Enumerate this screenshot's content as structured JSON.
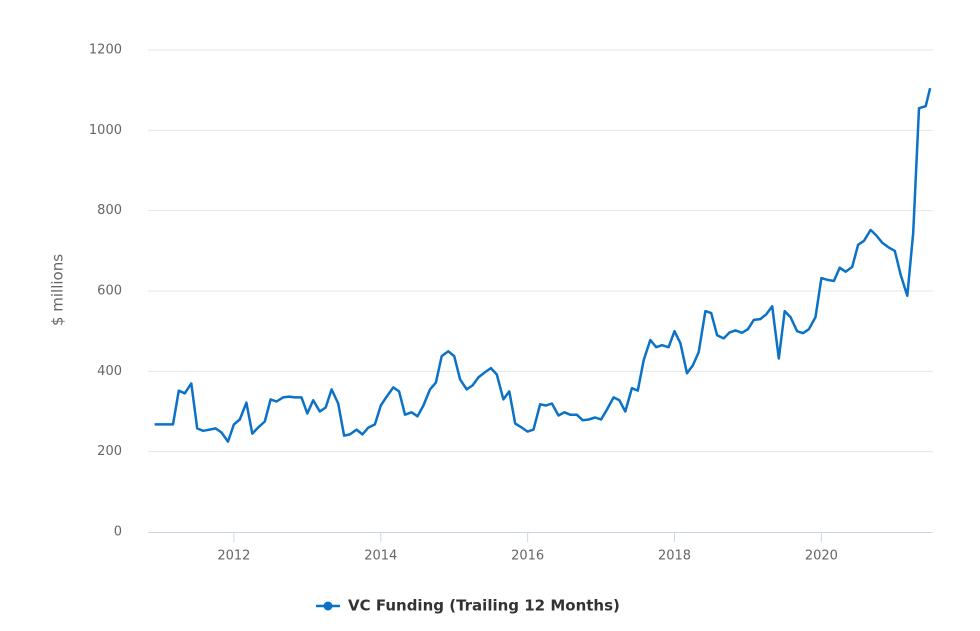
{
  "chart_data": {
    "type": "line",
    "y_label": "$ millions",
    "x": [
      2010.92,
      2011.0,
      2011.08,
      2011.17,
      2011.25,
      2011.33,
      2011.42,
      2011.5,
      2011.58,
      2011.67,
      2011.75,
      2011.83,
      2011.92,
      2012.0,
      2012.08,
      2012.17,
      2012.25,
      2012.33,
      2012.42,
      2012.5,
      2012.58,
      2012.67,
      2012.75,
      2012.83,
      2012.92,
      2013.0,
      2013.08,
      2013.17,
      2013.25,
      2013.33,
      2013.42,
      2013.5,
      2013.58,
      2013.67,
      2013.75,
      2013.83,
      2013.92,
      2014.0,
      2014.08,
      2014.17,
      2014.25,
      2014.33,
      2014.42,
      2014.5,
      2014.58,
      2014.67,
      2014.75,
      2014.83,
      2014.92,
      2015.0,
      2015.08,
      2015.17,
      2015.25,
      2015.33,
      2015.42,
      2015.5,
      2015.58,
      2015.67,
      2015.75,
      2015.83,
      2015.92,
      2016.0,
      2016.08,
      2016.17,
      2016.25,
      2016.33,
      2016.42,
      2016.5,
      2016.58,
      2016.67,
      2016.75,
      2016.83,
      2016.92,
      2017.0,
      2017.08,
      2017.17,
      2017.25,
      2017.33,
      2017.42,
      2017.5,
      2017.58,
      2017.67,
      2017.75,
      2017.83,
      2017.92,
      2018.0,
      2018.08,
      2018.17,
      2018.25,
      2018.33,
      2018.42,
      2018.5,
      2018.58,
      2018.67,
      2018.75,
      2018.83,
      2018.92,
      2019.0,
      2019.08,
      2019.17,
      2019.25,
      2019.33,
      2019.42,
      2019.5,
      2019.58,
      2019.67,
      2019.75,
      2019.83,
      2019.92,
      2020.0,
      2020.08,
      2020.17,
      2020.25,
      2020.33,
      2020.42,
      2020.5,
      2020.58,
      2020.67,
      2020.75,
      2020.83,
      2020.92,
      2021.0,
      2021.08,
      2021.17,
      2021.25,
      2021.33,
      2021.42,
      2021.48
    ],
    "series": [
      {
        "name": "VC Funding (Trailing 12 Months)",
        "color": "#0b72c7",
        "values": [
          268,
          268,
          268,
          268,
          352,
          345,
          370,
          258,
          252,
          255,
          258,
          248,
          225,
          268,
          280,
          322,
          245,
          260,
          275,
          330,
          325,
          335,
          337,
          335,
          335,
          295,
          328,
          300,
          310,
          355,
          320,
          240,
          243,
          255,
          243,
          260,
          268,
          315,
          337,
          360,
          350,
          292,
          298,
          288,
          315,
          355,
          372,
          438,
          450,
          438,
          380,
          355,
          365,
          385,
          398,
          408,
          392,
          330,
          350,
          270,
          260,
          250,
          255,
          318,
          315,
          320,
          290,
          298,
          292,
          292,
          278,
          280,
          285,
          280,
          305,
          335,
          328,
          300,
          358,
          352,
          428,
          478,
          460,
          465,
          460,
          500,
          470,
          395,
          415,
          448,
          550,
          545,
          490,
          482,
          497,
          502,
          496,
          505,
          528,
          530,
          542,
          562,
          432,
          550,
          535,
          500,
          495,
          505,
          535,
          632,
          628,
          625,
          658,
          648,
          660,
          715,
          725,
          752,
          738,
          720,
          708,
          700,
          640,
          588,
          745,
          1055,
          1060,
          1105
        ]
      }
    ],
    "xlim": [
      2010.83,
      2021.52
    ],
    "xticks": [
      2012,
      2014,
      2016,
      2018,
      2020
    ],
    "ylim": [
      0,
      1200
    ],
    "yticks": [
      0,
      200,
      400,
      600,
      800,
      1000,
      1200
    ],
    "grid": true,
    "legend": "bottom"
  }
}
